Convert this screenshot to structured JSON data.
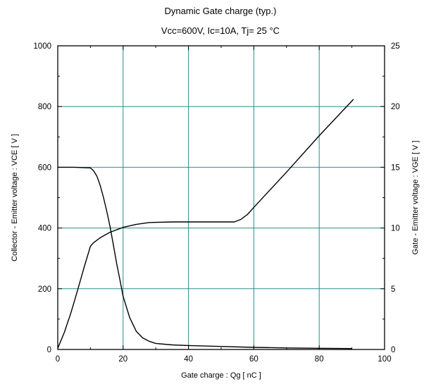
{
  "chart_data": {
    "type": "line",
    "title": "Dynamic Gate charge  (typ.)",
    "subtitle": "Vcc=600V, Ic=10A, Tj= 25  °C",
    "xlabel": "Gate charge  :  Qg  [ nC ]",
    "ylabel": "Collector - Emitter voltage  :  VCE  [ V ]",
    "ylabel_right": "Gate - Emitter voltage  :  VGE  [ V ]",
    "xlim": [
      0,
      100
    ],
    "ylim": [
      0,
      1000
    ],
    "ylim_right": [
      0,
      25
    ],
    "x_ticks": [
      "0",
      "20",
      "40",
      "60",
      "80",
      "100"
    ],
    "y_ticks": [
      "0",
      "200",
      "400",
      "600",
      "800",
      "1000"
    ],
    "y_ticks_right": [
      "0",
      "5",
      "10",
      "15",
      "20",
      "25"
    ],
    "grid": true,
    "grid_color": "#2e8b8b",
    "series": [
      {
        "axis": "left",
        "color": "#000000",
        "x": [
          0,
          5,
          10,
          11,
          12,
          13,
          14,
          15,
          16,
          17,
          18,
          19,
          20,
          22,
          24,
          26,
          28,
          30,
          35,
          40,
          50,
          60,
          70,
          80,
          90
        ],
        "y": [
          600,
          600,
          598,
          588,
          570,
          540,
          500,
          455,
          405,
          345,
          285,
          230,
          175,
          105,
          60,
          38,
          27,
          20,
          15,
          13,
          10,
          7,
          5,
          4,
          3
        ]
      },
      {
        "axis": "right",
        "color": "#000000",
        "x": [
          0,
          2,
          4,
          6,
          8,
          10,
          11,
          13,
          16,
          20,
          24,
          28,
          35,
          45,
          54,
          56,
          58,
          60,
          70,
          80,
          90.5
        ],
        "y": [
          0.1,
          1.4,
          3.0,
          4.8,
          6.7,
          8.5,
          8.8,
          9.2,
          9.65,
          10.05,
          10.3,
          10.45,
          10.5,
          10.5,
          10.5,
          10.7,
          11.1,
          11.7,
          14.6,
          17.6,
          20.6
        ]
      }
    ]
  }
}
